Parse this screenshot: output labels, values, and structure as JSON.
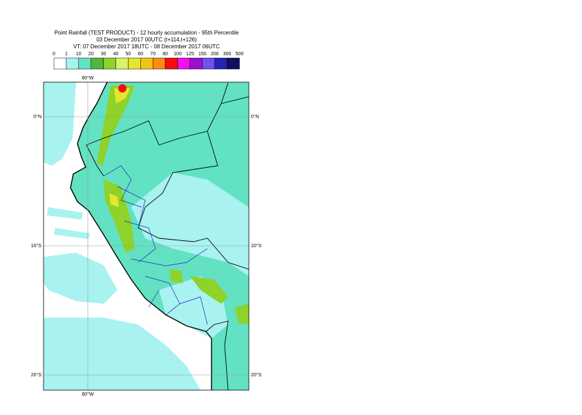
{
  "header": {
    "lines": [
      "Point Rainfall (TEST PRODUCT) - 12 hourly accumulation - 95th Percentile",
      "03 December 2017 00UTC (t+114,t+126)",
      "VT: 07 December 2017 18UTC - 08 December 2017 06UTC"
    ]
  },
  "legend": {
    "levels": [
      "0",
      "1",
      "10",
      "20",
      "30",
      "40",
      "50",
      "60",
      "70",
      "80",
      "100",
      "125",
      "150",
      "200",
      "300",
      "500"
    ],
    "colors": [
      "#ffffff",
      "#a8f2f0",
      "#62e2c2",
      "#54b43c",
      "#8ed22a",
      "#d8f46a",
      "#e6e630",
      "#f2c21a",
      "#fa8c10",
      "#f80c0c",
      "#f010f0",
      "#9c12c8",
      "#7050f0",
      "#2424b4",
      "#10105c"
    ]
  },
  "map": {
    "grid_labels": {
      "lon": [
        "80°W"
      ],
      "lat": [
        "0°N",
        "10°S",
        "20°S"
      ]
    }
  }
}
